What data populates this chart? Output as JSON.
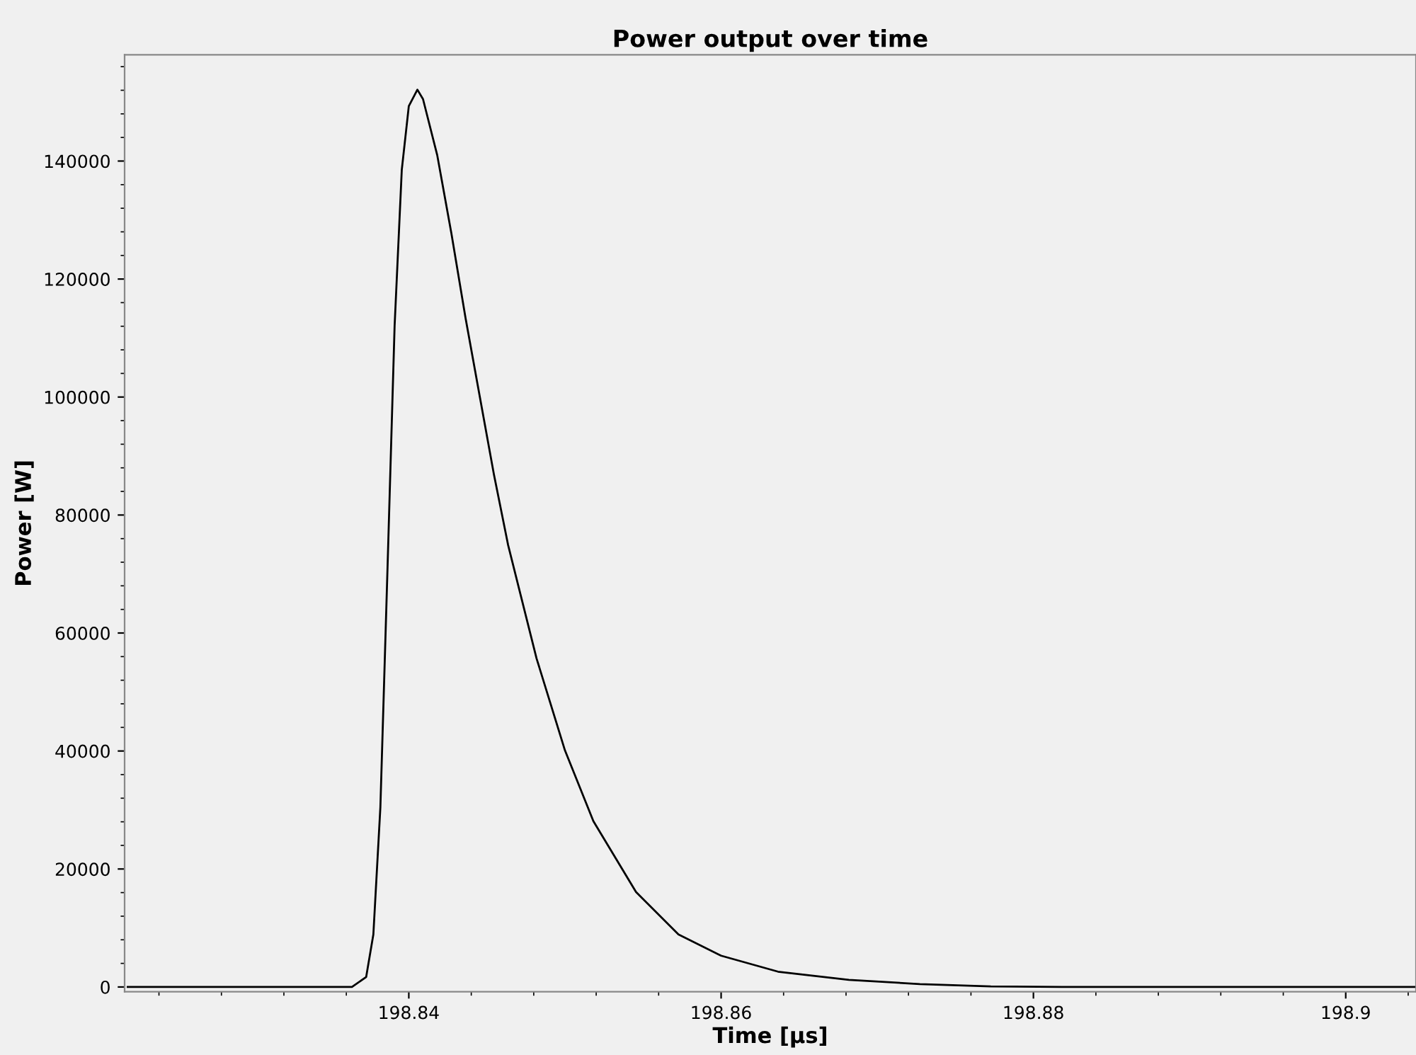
{
  "chart_data": {
    "type": "line",
    "title": "Power output over time",
    "xlabel": "Time [µs]",
    "ylabel": "Power [W]",
    "xlim": [
      198.8218,
      198.9045
    ],
    "xticks": [
      198.84,
      198.86,
      198.88,
      198.9
    ],
    "ylim": [
      -800,
      158000
    ],
    "yticks": [
      0,
      20000,
      40000,
      60000,
      80000,
      100000,
      120000,
      140000
    ],
    "grid": false,
    "legend": false,
    "marker": "none",
    "line_style": "solid",
    "series": [
      {
        "color": "#000000",
        "x": [
          198.822,
          198.83,
          198.83636,
          198.83727,
          198.83773,
          198.83818,
          198.83864,
          198.83909,
          198.83955,
          198.84,
          198.84055,
          198.84091,
          198.84182,
          198.84273,
          198.84364,
          198.84455,
          198.84545,
          198.84636,
          198.84818,
          198.85,
          198.85182,
          198.85455,
          198.85727,
          198.86,
          198.86364,
          198.86818,
          198.87273,
          198.87727,
          198.88182,
          198.89,
          198.9045
        ],
        "values": [
          0,
          0,
          0,
          1700,
          8900,
          30500,
          71300,
          112000,
          138500,
          149300,
          152100,
          150500,
          141000,
          127700,
          113300,
          100000,
          86900,
          74900,
          55700,
          40100,
          28100,
          16100,
          8900,
          5300,
          2600,
          1200,
          500,
          100,
          0,
          0,
          0
        ]
      }
    ]
  }
}
